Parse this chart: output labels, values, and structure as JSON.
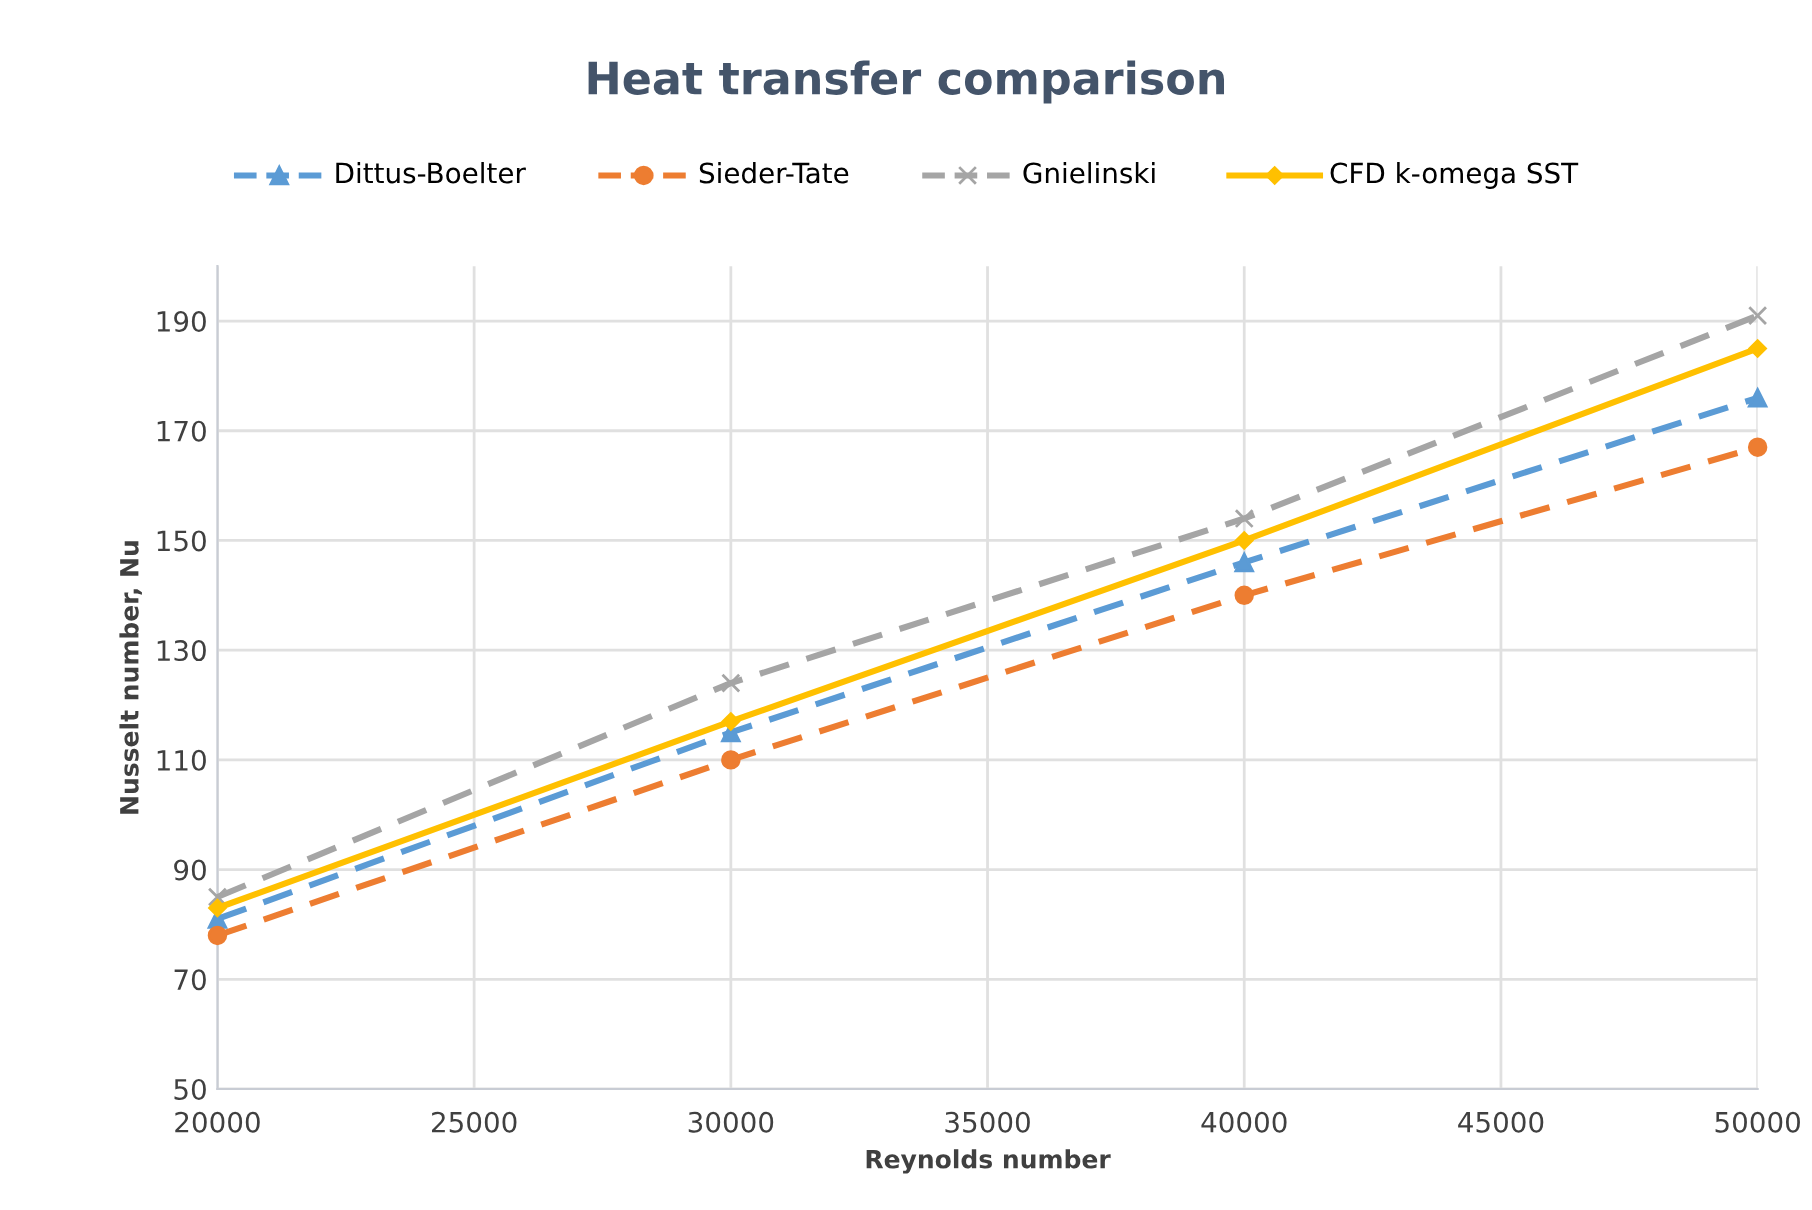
{
  "chart_data": {
    "type": "line",
    "title": "Heat transfer comparison",
    "xlabel": "Reynolds number",
    "ylabel": "Nusselt number, Nu",
    "x": [
      20000,
      30000,
      40000,
      50000
    ],
    "series": [
      {
        "name": "Dittus-Boelter",
        "color": "#5b9bd5",
        "values": [
          81,
          115,
          146,
          176
        ],
        "marker": "triangle",
        "line_style": "dashed"
      },
      {
        "name": "Sieder-Tate",
        "color": "#ed7d31",
        "values": [
          78,
          110,
          140,
          167
        ],
        "marker": "circle",
        "line_style": "dashed"
      },
      {
        "name": "Gnielinski",
        "color": "#a5a5a5",
        "values": [
          85,
          124,
          154,
          191
        ],
        "marker": "cross",
        "line_style": "dashed"
      },
      {
        "name": "CFD k-omega SST",
        "color": "#ffc000",
        "values": [
          83,
          117,
          150,
          185
        ],
        "marker": "diamond",
        "line_style": "solid"
      }
    ],
    "xlim": [
      20000,
      50000
    ],
    "xticks": [
      20000,
      25000,
      30000,
      35000,
      40000,
      45000,
      50000
    ],
    "ylim": [
      50,
      200
    ],
    "yticks": [
      50,
      70,
      90,
      110,
      130,
      150,
      170,
      190
    ],
    "grid": true,
    "legend": "top"
  }
}
